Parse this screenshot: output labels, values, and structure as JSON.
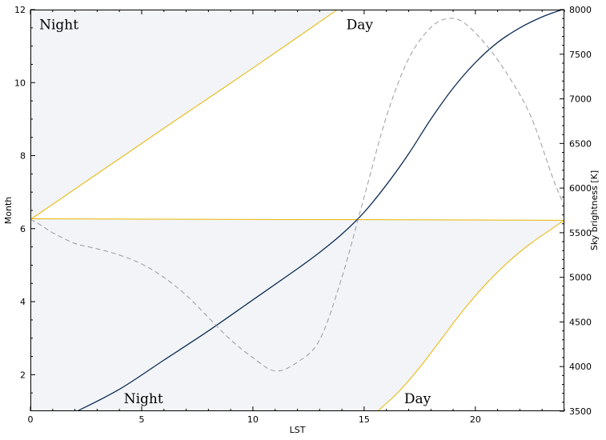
{
  "chart_data": {
    "type": "line",
    "xlabel": "LST",
    "ylabel": "Month",
    "y2label": "Sky brightness [K]",
    "xlim": [
      0,
      24
    ],
    "ylim": [
      1,
      12
    ],
    "y2lim": [
      3500,
      8000
    ],
    "xticks": [
      0,
      5,
      10,
      15,
      20
    ],
    "yticks": [
      2,
      4,
      6,
      8,
      10,
      12
    ],
    "y2ticks": [
      3500,
      4000,
      4500,
      5000,
      5500,
      6000,
      6500,
      7000,
      7500,
      8000
    ],
    "grid": false,
    "colors": {
      "night_fill": "#f2f4f7",
      "boundary": "#e8b400",
      "transit": "#0d2c54",
      "sky": "#9a9a9a"
    },
    "region_labels": [
      {
        "text": "Night",
        "x": 0.4,
        "y": 11.6
      },
      {
        "text": "Day",
        "x": 14.2,
        "y": 11.6
      },
      {
        "text": "Night",
        "x": 4.2,
        "y": 1.35
      },
      {
        "text": "Day",
        "x": 16.8,
        "y": 1.35
      }
    ],
    "series": [
      {
        "role": "night-boundary-upper",
        "style": "solid",
        "x": [
          0,
          6,
          10,
          13.8
        ],
        "y": [
          6.25,
          8.75,
          10.4,
          12
        ]
      },
      {
        "role": "night-boundary-horizontal",
        "style": "solid",
        "x": [
          0,
          24
        ],
        "y": [
          6.27,
          6.23
        ]
      },
      {
        "role": "night-boundary-lower",
        "style": "solid",
        "x": [
          15.6,
          16.5,
          17.5,
          18.5,
          19.5,
          20.5,
          21.5,
          22.5,
          24
        ],
        "y": [
          1,
          1.5,
          2.2,
          3.0,
          3.8,
          4.5,
          5.1,
          5.6,
          6.23
        ]
      },
      {
        "role": "transit-curve",
        "style": "solid",
        "x": [
          2.1,
          4,
          6,
          8,
          10,
          12,
          13,
          14,
          15,
          16,
          17,
          18,
          19,
          20,
          21,
          22,
          23,
          23.9
        ],
        "y": [
          1,
          1.6,
          2.4,
          3.2,
          4.05,
          4.9,
          5.35,
          5.85,
          6.45,
          7.2,
          8.05,
          9.0,
          9.85,
          10.55,
          11.1,
          11.5,
          11.8,
          12
        ]
      },
      {
        "role": "sky-brightness",
        "axis": "right",
        "style": "dashed",
        "x": [
          0,
          0.5,
          1,
          2,
          3,
          4,
          5,
          6,
          7,
          8,
          9,
          10,
          11,
          12,
          13,
          14,
          15,
          16,
          17,
          18,
          18.8,
          19.5,
          20.5,
          21.5,
          22.5,
          23.5,
          24
        ],
        "y": [
          5650,
          5580,
          5500,
          5380,
          5320,
          5250,
          5150,
          5000,
          4800,
          4550,
          4300,
          4100,
          3950,
          4050,
          4300,
          5000,
          5900,
          6800,
          7450,
          7800,
          7900,
          7850,
          7600,
          7250,
          6800,
          6100,
          5800
        ]
      }
    ]
  }
}
